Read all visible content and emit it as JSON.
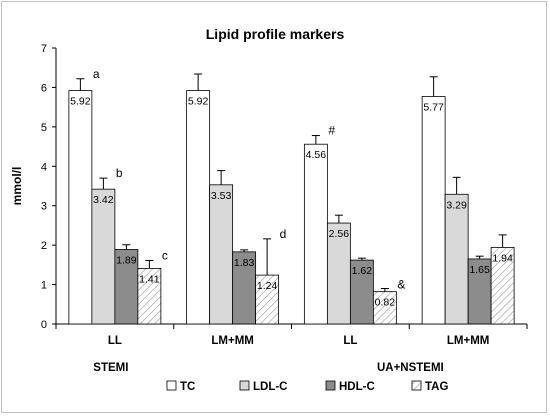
{
  "chart_data": {
    "type": "bar",
    "title": "Lipid profile markers",
    "ylabel": "mmol/l",
    "ylim": [
      0,
      7
    ],
    "yticks": [
      "0",
      "1",
      "2",
      "3",
      "4",
      "5",
      "6",
      "7"
    ],
    "grid": false,
    "legend_position": "bottom",
    "categories": [
      "LL",
      "LM+MM",
      "LL",
      "LM+MM"
    ],
    "groups": [
      "STEMI",
      "UA+NSTEMI"
    ],
    "series": [
      {
        "name": "TC",
        "color": "#ffffff",
        "pattern": "solid",
        "values": [
          5.92,
          5.92,
          4.56,
          5.77
        ],
        "errors": [
          0.3,
          0.42,
          0.22,
          0.5
        ],
        "labels": [
          "5.92",
          "5.92",
          "4.56",
          "5.77"
        ],
        "markers": [
          "a",
          "",
          "#",
          ""
        ]
      },
      {
        "name": "LDL-C",
        "color": "#d9d9d9",
        "pattern": "solid",
        "values": [
          3.42,
          3.53,
          2.56,
          3.29
        ],
        "errors": [
          0.28,
          0.36,
          0.2,
          0.43
        ],
        "labels": [
          "3.42",
          "3.53",
          "2.56",
          "3.29"
        ],
        "markers": [
          "b",
          "",
          "",
          ""
        ]
      },
      {
        "name": "HDL-C",
        "color": "#8c8c8c",
        "pattern": "solid",
        "values": [
          1.89,
          1.83,
          1.62,
          1.65
        ],
        "errors": [
          0.12,
          0.05,
          0.05,
          0.07
        ],
        "labels": [
          "1.89",
          "1.83",
          "1.62",
          "1.65"
        ],
        "markers": [
          "",
          "",
          "",
          ""
        ]
      },
      {
        "name": "TAG",
        "color": "#ffffff",
        "pattern": "hatch",
        "values": [
          1.41,
          1.24,
          0.82,
          1.94
        ],
        "errors": [
          0.2,
          0.92,
          0.08,
          0.32
        ],
        "labels": [
          "1.41",
          "1.24",
          "0.82",
          "1.94"
        ],
        "markers": [
          "c",
          "d",
          "&",
          ""
        ]
      }
    ]
  }
}
